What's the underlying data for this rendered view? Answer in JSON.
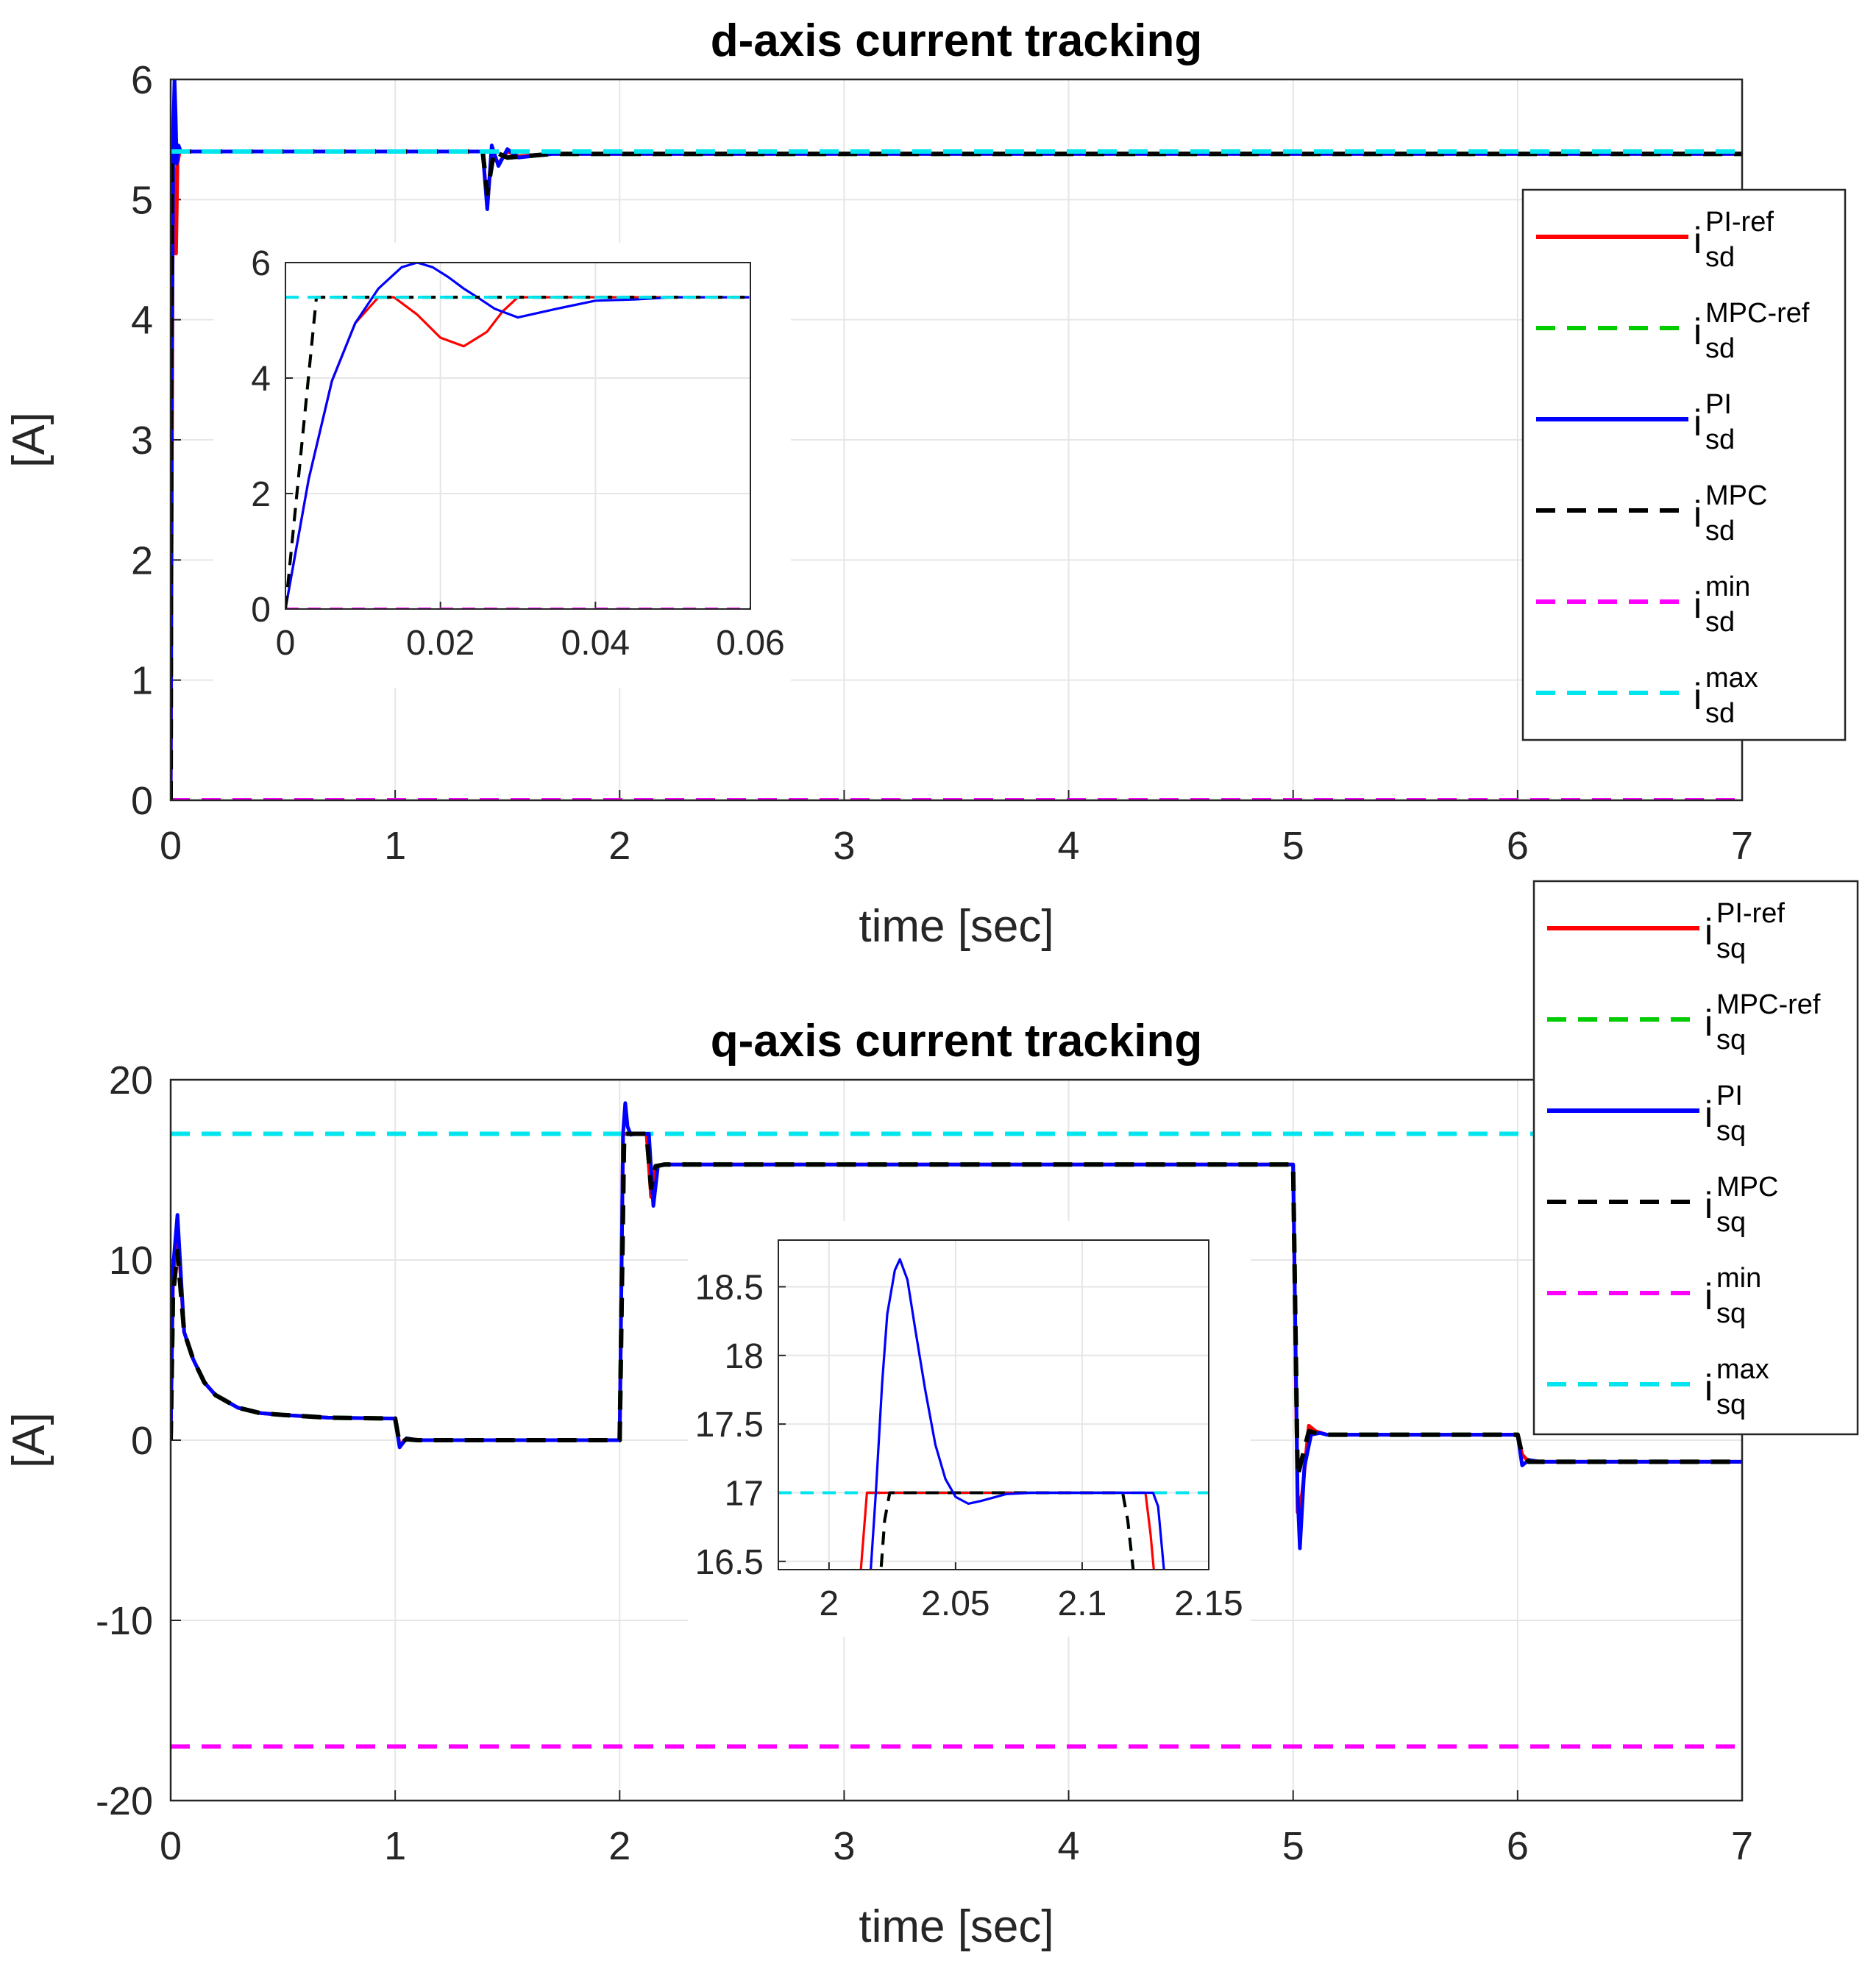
{
  "chart_data": [
    {
      "type": "line",
      "title": "d-axis current tracking",
      "xlabel": "time [sec]",
      "ylabel": "[A]",
      "xlim": [
        0,
        7
      ],
      "ylim": [
        0,
        6
      ],
      "xticks": [
        "0",
        "1",
        "2",
        "3",
        "4",
        "5",
        "6",
        "7"
      ],
      "yticks": [
        "0",
        "1",
        "2",
        "3",
        "4",
        "5",
        "6"
      ],
      "grid": true,
      "legend_position": "right",
      "legend": [
        {
          "main": "i",
          "sup": "PI-ref",
          "sub": "sd",
          "color": "#ff0000",
          "dash": false
        },
        {
          "main": "i",
          "sup": "MPC-ref",
          "sub": "sd",
          "color": "#00cc00",
          "dash": true
        },
        {
          "main": "i",
          "sup": "PI",
          "sub": "sd",
          "color": "#0000ff",
          "dash": false
        },
        {
          "main": "i",
          "sup": "MPC",
          "sub": "sd",
          "color": "#000000",
          "dash": true
        },
        {
          "main": "i",
          "sup": "min",
          "sub": "sd",
          "color": "#ff00ff",
          "dash": true
        },
        {
          "main": "i",
          "sup": "max",
          "sub": "sd",
          "color": "#00e5ee",
          "dash": true
        }
      ],
      "series": [
        {
          "color": "#ff00ff",
          "dash": true,
          "width": 6,
          "x": [
            0,
            7
          ],
          "y": [
            0,
            0
          ]
        },
        {
          "color": "#ff0000",
          "dash": false,
          "width": 5,
          "x": [
            0,
            0.01,
            0.017,
            0.024,
            0.03,
            0.04,
            1.39,
            1.41,
            1.43,
            1.46,
            1.5,
            1.55,
            1.7,
            2.0,
            7
          ],
          "y": [
            0,
            5.4,
            5.1,
            4.55,
            5.3,
            5.4,
            5.4,
            4.95,
            5.38,
            5.3,
            5.4,
            5.36,
            5.38,
            5.38,
            5.38
          ]
        },
        {
          "color": "#0000ff",
          "dash": false,
          "width": 5,
          "x": [
            0,
            0.006,
            0.012,
            0.017,
            0.022,
            0.027,
            0.035,
            0.045,
            0.06,
            1.39,
            1.41,
            1.43,
            1.46,
            1.5,
            1.55,
            1.7,
            2.0,
            7
          ],
          "y": [
            0,
            3.8,
            5.6,
            6.0,
            5.7,
            5.3,
            5.45,
            5.4,
            5.4,
            5.4,
            4.92,
            5.45,
            5.28,
            5.42,
            5.35,
            5.38,
            5.38,
            5.38
          ]
        },
        {
          "color": "#00cc00",
          "dash": true,
          "width": 6,
          "x": [
            0,
            0.004,
            0.06,
            1.39,
            1.41,
            1.44,
            1.5,
            1.7,
            2.0,
            7
          ],
          "y": [
            0,
            5.4,
            5.4,
            5.4,
            5.05,
            5.4,
            5.35,
            5.38,
            5.38,
            5.38
          ]
        },
        {
          "color": "#000000",
          "dash": true,
          "width": 6,
          "x": [
            0,
            0.004,
            0.06,
            1.39,
            1.41,
            1.44,
            1.5,
            1.7,
            2.0,
            7
          ],
          "y": [
            0,
            5.4,
            5.4,
            5.4,
            5.05,
            5.4,
            5.35,
            5.38,
            5.38,
            5.38
          ]
        },
        {
          "color": "#00e5ee",
          "dash": true,
          "width": 6,
          "x": [
            0,
            7
          ],
          "y": [
            5.4,
            5.4
          ]
        }
      ],
      "inset": {
        "xlim": [
          0,
          0.06
        ],
        "ylim": [
          0,
          6
        ],
        "xticks": [
          "0",
          "0.02",
          "0.04",
          "0.06"
        ],
        "yticks": [
          "0",
          "2",
          "4",
          "6"
        ],
        "series": [
          {
            "color": "#ff00ff",
            "dash": true,
            "width": 5,
            "x": [
              0,
              0.06
            ],
            "y": [
              0,
              0
            ]
          },
          {
            "color": "#ff0000",
            "dash": false,
            "width": 4,
            "x": [
              0,
              0.003,
              0.006,
              0.009,
              0.012,
              0.014,
              0.017,
              0.02,
              0.023,
              0.026,
              0.028,
              0.03,
              0.035,
              0.04,
              0.05,
              0.06
            ],
            "y": [
              0,
              2.25,
              3.95,
              4.95,
              5.4,
              5.4,
              5.1,
              4.7,
              4.55,
              4.8,
              5.15,
              5.4,
              5.4,
              5.4,
              5.4,
              5.4
            ]
          },
          {
            "color": "#0000ff",
            "dash": false,
            "width": 4,
            "x": [
              0,
              0.003,
              0.006,
              0.009,
              0.012,
              0.015,
              0.017,
              0.019,
              0.021,
              0.023,
              0.025,
              0.027,
              0.03,
              0.035,
              0.04,
              0.045,
              0.05,
              0.055,
              0.06
            ],
            "y": [
              0,
              2.25,
              3.95,
              4.95,
              5.55,
              5.92,
              6.0,
              5.92,
              5.75,
              5.55,
              5.38,
              5.2,
              5.05,
              5.2,
              5.34,
              5.36,
              5.4,
              5.4,
              5.4
            ]
          },
          {
            "color": "#00cc00",
            "dash": true,
            "width": 5,
            "x": [
              0,
              0.004,
              0.06
            ],
            "y": [
              0,
              5.4,
              5.4
            ]
          },
          {
            "color": "#000000",
            "dash": true,
            "width": 5,
            "x": [
              0,
              0.004,
              0.06
            ],
            "y": [
              0,
              5.4,
              5.4
            ]
          },
          {
            "color": "#00e5ee",
            "dash": true,
            "width": 5,
            "x": [
              0,
              0.06
            ],
            "y": [
              5.4,
              5.4
            ]
          }
        ]
      }
    },
    {
      "type": "line",
      "title": "q-axis current tracking",
      "xlabel": "time [sec]",
      "ylabel": "[A]",
      "xlim": [
        0,
        7
      ],
      "ylim": [
        -20,
        20
      ],
      "xticks": [
        "0",
        "1",
        "2",
        "3",
        "4",
        "5",
        "6",
        "7"
      ],
      "yticks": [
        "-20",
        "-10",
        "0",
        "10",
        "20"
      ],
      "grid": true,
      "legend_position": "right",
      "legend": [
        {
          "main": "i",
          "sup": "PI-ref",
          "sub": "sq",
          "color": "#ff0000",
          "dash": false
        },
        {
          "main": "i",
          "sup": "MPC-ref",
          "sub": "sq",
          "color": "#00cc00",
          "dash": true
        },
        {
          "main": "i",
          "sup": "PI",
          "sub": "sq",
          "color": "#0000ff",
          "dash": false
        },
        {
          "main": "i",
          "sup": "MPC",
          "sub": "sq",
          "color": "#000000",
          "dash": true
        },
        {
          "main": "i",
          "sup": "min",
          "sub": "sq",
          "color": "#ff00ff",
          "dash": true
        },
        {
          "main": "i",
          "sup": "max",
          "sub": "sq",
          "color": "#00e5ee",
          "dash": true
        }
      ],
      "series": [
        {
          "color": "#ff00ff",
          "dash": true,
          "width": 6,
          "x": [
            0,
            7
          ],
          "y": [
            -17,
            -17
          ]
        },
        {
          "color": "#00e5ee",
          "dash": true,
          "width": 6,
          "x": [
            0,
            7
          ],
          "y": [
            17,
            17
          ]
        },
        {
          "color": "#ff0000",
          "dash": false,
          "width": 5,
          "x": [
            0,
            0.01,
            0.03,
            0.06,
            0.1,
            0.15,
            0.2,
            0.3,
            0.4,
            0.5,
            0.7,
            1.0,
            1.02,
            1.05,
            1.1,
            2.0,
            2.015,
            2.12,
            2.14,
            2.16,
            2.2,
            5.0,
            5.02,
            5.04,
            5.07,
            5.1,
            5.15,
            6.0,
            6.02,
            6.05,
            6.1,
            7
          ],
          "y": [
            0,
            9.0,
            12.0,
            6.0,
            4.5,
            3.2,
            2.5,
            1.8,
            1.5,
            1.4,
            1.25,
            1.2,
            -0.3,
            0.1,
            0,
            0,
            17,
            17,
            13.5,
            15.2,
            15.3,
            15.3,
            -4.0,
            -3.0,
            0.8,
            0.5,
            0.3,
            0.3,
            -0.8,
            -1.2,
            -1.2,
            -1.2
          ]
        },
        {
          "color": "#0000ff",
          "dash": false,
          "width": 5,
          "x": [
            0,
            0.01,
            0.03,
            0.06,
            0.1,
            0.15,
            0.2,
            0.3,
            0.4,
            0.5,
            0.7,
            1.0,
            1.02,
            1.05,
            1.1,
            2.0,
            2.015,
            2.025,
            2.035,
            2.05,
            2.07,
            2.1,
            2.13,
            2.15,
            2.17,
            2.2,
            5.0,
            5.02,
            5.03,
            5.05,
            5.08,
            5.12,
            5.15,
            6.0,
            6.02,
            6.05,
            6.1,
            7
          ],
          "y": [
            0,
            9.5,
            12.5,
            6.0,
            4.5,
            3.2,
            2.5,
            1.8,
            1.5,
            1.4,
            1.25,
            1.2,
            -0.4,
            0.1,
            0,
            0,
            17,
            18.7,
            17.4,
            16.95,
            17,
            17,
            17,
            13.0,
            15.2,
            15.3,
            15.3,
            -3.0,
            -6.0,
            -1.5,
            0.3,
            0.4,
            0.3,
            0.3,
            -1.4,
            -1.1,
            -1.2,
            -1.2
          ]
        },
        {
          "color": "#00cc00",
          "dash": true,
          "width": 6,
          "x": [
            0,
            0.01,
            0.03,
            0.06,
            0.1,
            0.15,
            0.2,
            0.3,
            0.4,
            0.5,
            0.7,
            1.0,
            1.02,
            1.05,
            1.1,
            2.0,
            2.02,
            2.12,
            2.14,
            2.16,
            2.2,
            5.0,
            5.02,
            5.04,
            5.07,
            5.1,
            5.15,
            6.0,
            6.02,
            6.05,
            6.1,
            7
          ],
          "y": [
            0,
            8.0,
            10.5,
            6.0,
            4.5,
            3.2,
            2.5,
            1.8,
            1.5,
            1.4,
            1.25,
            1.2,
            -0.2,
            0.05,
            0,
            0,
            17,
            17,
            14.0,
            15.2,
            15.3,
            15.3,
            -2.0,
            -1.0,
            0.5,
            0.4,
            0.3,
            0.3,
            -0.8,
            -1.2,
            -1.2,
            -1.2
          ]
        },
        {
          "color": "#000000",
          "dash": true,
          "width": 6,
          "x": [
            0,
            0.01,
            0.03,
            0.06,
            0.1,
            0.15,
            0.2,
            0.3,
            0.4,
            0.5,
            0.7,
            1.0,
            1.02,
            1.05,
            1.1,
            2.0,
            2.02,
            2.12,
            2.14,
            2.16,
            2.2,
            5.0,
            5.02,
            5.04,
            5.07,
            5.1,
            5.15,
            6.0,
            6.02,
            6.05,
            6.1,
            7
          ],
          "y": [
            0,
            8.0,
            10.5,
            6.0,
            4.5,
            3.2,
            2.5,
            1.8,
            1.5,
            1.4,
            1.25,
            1.2,
            -0.2,
            0.05,
            0,
            0,
            17,
            17,
            14.0,
            15.2,
            15.3,
            15.3,
            -2.0,
            -1.0,
            0.5,
            0.4,
            0.3,
            0.3,
            -0.8,
            -1.2,
            -1.2,
            -1.2
          ]
        }
      ],
      "inset": {
        "xlim": [
          1.98,
          2.15
        ],
        "ylim": [
          16.44,
          18.84
        ],
        "xticks": [
          "2",
          "2.05",
          "2.1",
          "2.15"
        ],
        "yticks": [
          "16.5",
          "17",
          "17.5",
          "18",
          "18.5"
        ],
        "series": [
          {
            "color": "#00e5ee",
            "dash": true,
            "width": 5,
            "x": [
              1.98,
              2.15
            ],
            "y": [
              17,
              17
            ]
          },
          {
            "color": "#ff0000",
            "dash": false,
            "width": 4,
            "x": [
              2.012,
              2.015,
              2.017,
              2.125,
              2.127,
              2.129
            ],
            "y": [
              16.3,
              17.0,
              17.0,
              17.0,
              16.7,
              16.3
            ]
          },
          {
            "color": "#00cc00",
            "dash": true,
            "width": 5,
            "x": [
              2.02,
              2.022,
              2.024,
              2.116,
              2.118,
              2.121
            ],
            "y": [
              16.3,
              16.8,
              17.0,
              17.0,
              16.8,
              16.3
            ]
          },
          {
            "color": "#000000",
            "dash": true,
            "width": 5,
            "x": [
              2.02,
              2.022,
              2.024,
              2.116,
              2.118,
              2.121
            ],
            "y": [
              16.3,
              16.8,
              17.0,
              17.0,
              16.8,
              16.3
            ]
          },
          {
            "color": "#0000ff",
            "dash": false,
            "width": 4,
            "x": [
              2.016,
              2.0185,
              2.021,
              2.023,
              2.026,
              2.028,
              2.031,
              2.034,
              2.038,
              2.042,
              2.046,
              2.05,
              2.055,
              2.06,
              2.07,
              2.08,
              2.09,
              2.1,
              2.128,
              2.13,
              2.133
            ],
            "y": [
              16.3,
              17.0,
              17.8,
              18.3,
              18.62,
              18.7,
              18.55,
              18.2,
              17.75,
              17.35,
              17.1,
              16.97,
              16.92,
              16.94,
              16.99,
              17.0,
              17.0,
              17.0,
              17.0,
              16.9,
              16.3
            ]
          }
        ]
      }
    }
  ]
}
